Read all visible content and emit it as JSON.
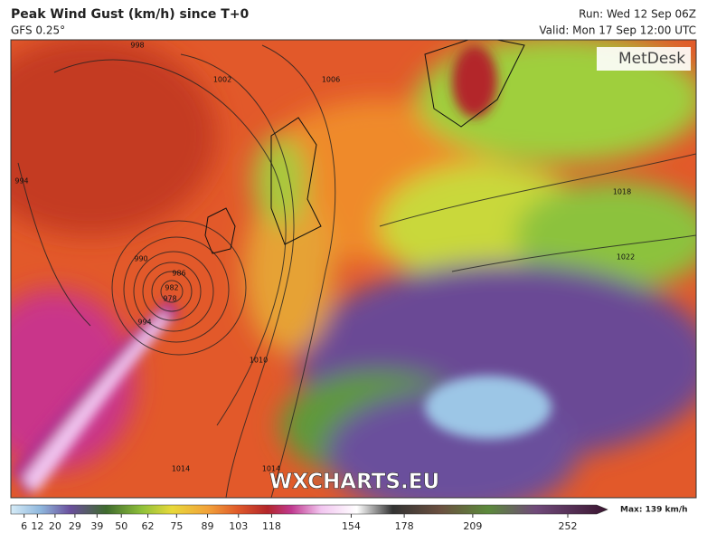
{
  "header": {
    "title": "Peak Wind Gust (km/h) since T+0",
    "model": "GFS 0.25°",
    "run": "Run: Wed 12 Sep 06Z",
    "valid": "Valid: Mon 17 Sep 12:00 UTC"
  },
  "logo": "MetDesk",
  "watermark": "WXCHARTS.EU",
  "max_label": "Max: 139 km/h",
  "colorbar": {
    "range": [
      0,
      270
    ],
    "ticks": [
      6,
      12,
      20,
      29,
      39,
      50,
      62,
      75,
      89,
      103,
      118,
      154,
      178,
      209,
      252
    ]
  },
  "isobar_labels": [
    "998",
    "1002",
    "1006",
    "994",
    "990",
    "986",
    "982",
    "978",
    "994",
    "1010",
    "1014",
    "1014",
    "1018",
    "1022"
  ]
}
